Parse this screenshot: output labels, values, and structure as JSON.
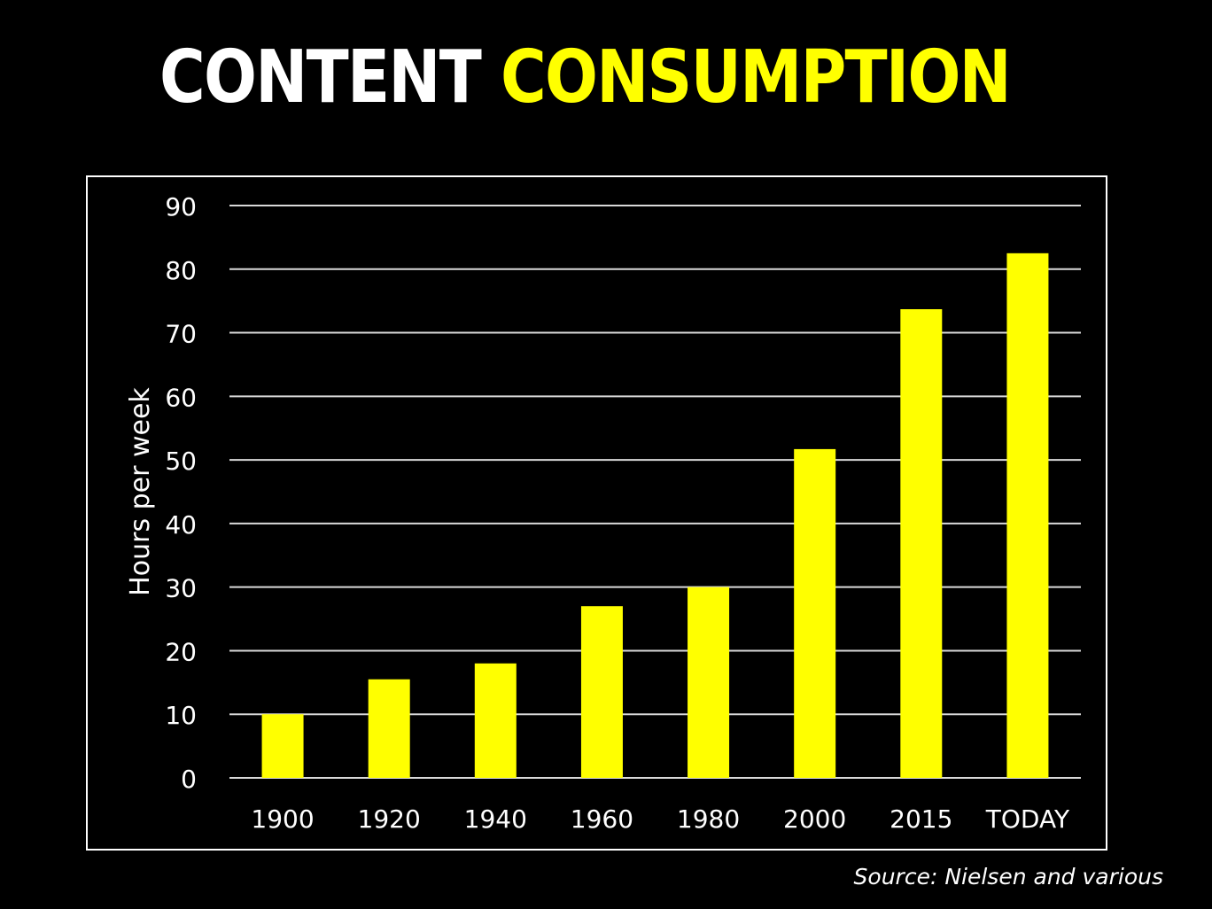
{
  "title": {
    "part1": "CONTENT",
    "part2": "CONSUMPTION"
  },
  "source": "Source: Nielsen and various",
  "colors": {
    "background": "#000000",
    "title_primary": "#ffffff",
    "title_accent": "#ffff00",
    "bar": "#ffff00",
    "grid": "#d9d9d9",
    "text": "#ffffff"
  },
  "chart_data": {
    "type": "bar",
    "categories": [
      "1900",
      "1920",
      "1940",
      "1960",
      "1980",
      "2000",
      "2015",
      "TODAY"
    ],
    "values": [
      10,
      15.5,
      18,
      27,
      30,
      51.7,
      73.7,
      82.5
    ],
    "ylabel": "Hours per week",
    "xlabel": "",
    "ylim": [
      0,
      90
    ],
    "yticks": [
      0,
      10,
      20,
      30,
      40,
      50,
      60,
      70,
      80,
      90
    ],
    "grid": true,
    "legend": "none"
  }
}
